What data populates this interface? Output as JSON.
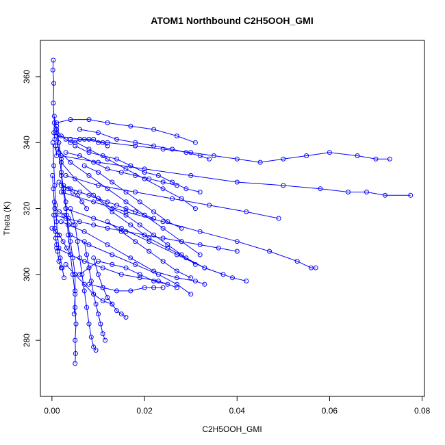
{
  "chart_data": {
    "type": "line",
    "title": "ATOM1 Northbound C2H5OOH_GMI",
    "xlabel": "C2H5OOH_GMI",
    "ylabel": "Theta (K)",
    "xlim": [
      -0.0025,
      0.0805
    ],
    "ylim": [
      263,
      371
    ],
    "x_ticks": [
      0.0,
      0.02,
      0.04,
      0.06,
      0.08
    ],
    "x_tick_labels": [
      "0.00",
      "0.02",
      "0.04",
      "0.06",
      "0.08"
    ],
    "y_ticks": [
      280,
      300,
      320,
      340,
      360
    ],
    "y_tick_labels": [
      "280",
      "300",
      "320",
      "340",
      "360"
    ],
    "series_color": "#0000ff",
    "marker": "open-circle",
    "grid": false,
    "legend": "none",
    "series": [
      {
        "x": [
          0.0003,
          0.0002,
          0.0004,
          0.0003,
          0.0005,
          0.0004,
          0.0006,
          0.0008,
          0.001
        ],
        "y": [
          365,
          362,
          358,
          352,
          346,
          343,
          341,
          339,
          336
        ]
      },
      {
        "x": [
          0.001,
          0.004,
          0.008,
          0.012,
          0.017,
          0.022,
          0.027,
          0.031
        ],
        "y": [
          346,
          347,
          347,
          346,
          345,
          344,
          342,
          340
        ]
      },
      {
        "x": [
          0.001,
          0.006,
          0.012,
          0.018,
          0.024,
          0.03,
          0.035,
          0.04,
          0.045,
          0.05,
          0.055,
          0.06,
          0.066,
          0.07,
          0.073
        ],
        "y": [
          342,
          341,
          340,
          339,
          338,
          337,
          336,
          335,
          334,
          335,
          336,
          337,
          336,
          335,
          335
        ]
      },
      {
        "x": [
          0.002,
          0.01,
          0.02,
          0.03,
          0.04,
          0.05,
          0.058,
          0.064,
          0.068,
          0.072,
          0.0775
        ],
        "y": [
          336,
          334,
          332,
          330,
          328,
          327,
          326,
          325,
          325,
          324,
          324
        ]
      },
      {
        "x": [
          0.003,
          0.01,
          0.018,
          0.026,
          0.034,
          0.042,
          0.049
        ],
        "y": [
          330,
          327,
          325,
          323,
          321,
          319,
          317
        ]
      },
      {
        "x": [
          0.002,
          0.009,
          0.016,
          0.024,
          0.032,
          0.04,
          0.047,
          0.053,
          0.056,
          0.057
        ],
        "y": [
          325,
          322,
          319,
          316,
          313,
          310,
          307,
          304,
          302,
          302
        ]
      },
      {
        "x": [
          0.003,
          0.009,
          0.015,
          0.021,
          0.027,
          0.033,
          0.039,
          0.042
        ],
        "y": [
          320,
          317,
          314,
          310,
          306,
          302,
          299,
          298
        ]
      },
      {
        "x": [
          0.002,
          0.007,
          0.012,
          0.017,
          0.022,
          0.027,
          0.031,
          0.033
        ],
        "y": [
          316,
          313,
          309,
          305,
          301,
          299,
          298,
          297
        ]
      },
      {
        "x": [
          0.004,
          0.008,
          0.013,
          0.018,
          0.023,
          0.027,
          0.03
        ],
        "y": [
          312,
          309,
          306,
          303,
          300,
          297,
          294
        ]
      },
      {
        "x": [
          0.0012,
          0.004,
          0.008,
          0.012,
          0.016,
          0.02,
          0.024,
          0.028,
          0.032
        ],
        "y": [
          338,
          334,
          330,
          326,
          322,
          318,
          314,
          310,
          306
        ]
      },
      {
        "x": [
          0.002,
          0.005,
          0.009,
          0.013,
          0.017,
          0.021,
          0.025,
          0.029,
          0.033,
          0.037
        ],
        "y": [
          334,
          329,
          324,
          319,
          315,
          311,
          308,
          305,
          302,
          300
        ]
      },
      {
        "x": [
          0.004,
          0.008,
          0.012,
          0.016,
          0.02,
          0.024,
          0.028,
          0.031
        ],
        "y": [
          341,
          338,
          335,
          332,
          329,
          326,
          323,
          320
        ]
      },
      {
        "x": [
          0.006,
          0.01,
          0.014,
          0.018,
          0.022,
          0.026,
          0.029,
          0.032,
          0.034
        ],
        "y": [
          344,
          343,
          341,
          340,
          339,
          338,
          337,
          336,
          335
        ]
      },
      {
        "x": [
          0.0008,
          0.003,
          0.006,
          0.009,
          0.012,
          0.016,
          0.02,
          0.024,
          0.028,
          0.032,
          0.036,
          0.04
        ],
        "y": [
          318,
          317,
          316,
          315,
          314,
          313,
          312,
          311,
          310,
          309,
          308,
          307
        ]
      },
      {
        "x": [
          0.001,
          0.004,
          0.007,
          0.011,
          0.015,
          0.019,
          0.023,
          0.027
        ],
        "y": [
          308,
          306,
          304,
          302,
          300,
          299,
          298,
          296
        ]
      },
      {
        "x": [
          0.006,
          0.008,
          0.01,
          0.013,
          0.016,
          0.019,
          0.022,
          0.025
        ],
        "y": [
          300,
          302,
          304,
          303,
          302,
          300,
          298,
          297
        ]
      },
      {
        "x": [
          0.003,
          0.005,
          0.007,
          0.009,
          0.011,
          0.013
        ],
        "y": [
          303,
          300,
          297,
          294,
          292,
          291
        ]
      },
      {
        "x": [
          0.008,
          0.011,
          0.014,
          0.017,
          0.02,
          0.022,
          0.024
        ],
        "y": [
          297,
          296,
          295,
          295,
          296,
          296,
          296
        ]
      },
      {
        "x": [
          0.001,
          0.0015,
          0.002,
          0.002,
          0.0025,
          0.003,
          0.0035,
          0.004,
          0.0045,
          0.005,
          0.005,
          0.005,
          0.0052,
          0.005,
          0.0051,
          0.005
        ],
        "y": [
          345,
          340,
          335,
          330,
          325,
          320,
          315,
          310,
          305,
          300,
          295,
          290,
          285,
          280,
          276,
          273
        ]
      },
      {
        "x": [
          0.0005,
          0.001,
          0.0015,
          0.002,
          0.0025,
          0.003,
          0.0032,
          0.0035,
          0.004,
          0.0045,
          0.005,
          0.0048
        ],
        "y": [
          348,
          343,
          337,
          331,
          326,
          322,
          318,
          312,
          306,
          300,
          294,
          288
        ]
      },
      {
        "x": [
          0.0002,
          0.0004,
          0.0006,
          0.0008,
          0.001,
          0.0012,
          0.0015,
          0.0018,
          0.0022,
          0.0026
        ],
        "y": [
          340,
          333,
          327,
          321,
          316,
          312,
          308,
          305,
          302,
          299
        ]
      },
      {
        "x": [
          0.0001,
          0.0003,
          0.0005,
          0.0004,
          0.0006,
          0.0008,
          0.001,
          0.0012,
          0.0015,
          0.002
        ],
        "y": [
          330,
          326,
          322,
          318,
          314,
          311,
          309,
          307,
          304,
          302
        ]
      },
      {
        "x": [
          0.004,
          0.005,
          0.0055,
          0.006,
          0.0065,
          0.007,
          0.0075,
          0.008,
          0.0085,
          0.009,
          0.0095
        ],
        "y": [
          320,
          315,
          310,
          305,
          300,
          295,
          290,
          285,
          281,
          278,
          277
        ]
      },
      {
        "x": [
          0.007,
          0.0075,
          0.008,
          0.0085,
          0.009,
          0.0095,
          0.01,
          0.0105,
          0.011,
          0.0115
        ],
        "y": [
          310,
          306,
          302,
          298,
          294,
          291,
          288,
          285,
          282,
          280
        ]
      },
      {
        "x": [
          0.009,
          0.01,
          0.011,
          0.012,
          0.013,
          0.014,
          0.015,
          0.016
        ],
        "y": [
          305,
          300,
          296,
          293,
          291,
          289,
          288,
          287
        ]
      },
      {
        "x": [
          0.002,
          0.004,
          0.006,
          0.008,
          0.01,
          0.012,
          0.014,
          0.016,
          0.018,
          0.02,
          0.022
        ],
        "y": [
          327,
          326,
          325,
          324,
          323,
          322,
          321,
          320,
          319,
          318,
          317
        ]
      },
      {
        "x": [
          0.003,
          0.006,
          0.009,
          0.012,
          0.015,
          0.018,
          0.021,
          0.024,
          0.027
        ],
        "y": [
          337,
          336,
          334,
          332,
          331,
          330,
          329,
          328,
          327
        ]
      },
      {
        "x": [
          0.005,
          0.008,
          0.011,
          0.014,
          0.017,
          0.02,
          0.023,
          0.026,
          0.029,
          0.032
        ],
        "y": [
          339,
          337,
          336,
          335,
          333,
          331,
          330,
          328,
          326,
          325
        ]
      },
      {
        "x": [
          0.007,
          0.01,
          0.013,
          0.016,
          0.019,
          0.022,
          0.025,
          0.028
        ],
        "y": [
          333,
          331,
          328,
          325,
          322,
          319,
          316,
          314
        ]
      },
      {
        "x": [
          0.01,
          0.013,
          0.016,
          0.019,
          0.022,
          0.025,
          0.028,
          0.031
        ],
        "y": [
          323,
          320,
          318,
          315,
          312,
          309,
          306,
          303
        ]
      },
      {
        "x": [
          0.012,
          0.015,
          0.018,
          0.021,
          0.024,
          0.027,
          0.03
        ],
        "y": [
          316,
          313,
          310,
          307,
          304,
          301,
          299
        ]
      },
      {
        "x": [
          0.001,
          0.002,
          0.003,
          0.004,
          0.005,
          0.006,
          0.007,
          0.008,
          0.009,
          0.01,
          0.011,
          0.012
        ],
        "y": [
          344,
          342,
          341,
          340,
          340,
          341,
          341,
          341,
          341,
          340,
          340,
          339
        ]
      },
      {
        "x": [
          0.0015,
          0.0025,
          0.0035,
          0.0045,
          0.0055,
          0.0065,
          0.0075
        ],
        "y": [
          328,
          327,
          326,
          325,
          324,
          322,
          320
        ]
      },
      {
        "x": [
          0.0006,
          0.0016,
          0.0026,
          0.0036,
          0.0046
        ],
        "y": [
          320,
          319,
          318,
          317,
          315
        ]
      },
      {
        "x": [
          0.0,
          0.0008,
          0.0016,
          0.0024,
          0.0032,
          0.004
        ],
        "y": [
          314,
          313,
          312,
          310,
          308,
          306
        ]
      }
    ]
  }
}
